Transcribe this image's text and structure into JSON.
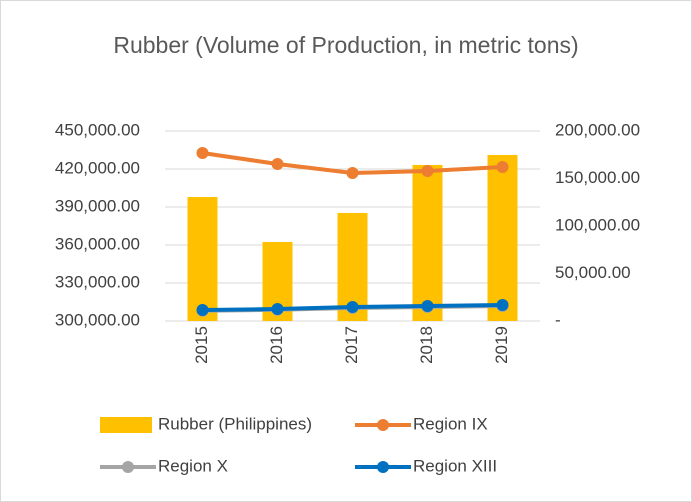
{
  "chart_data": {
    "type": "bar_line",
    "title": "Rubber (Volume of Production, in metric tons)",
    "categories": [
      "2015",
      "2016",
      "2017",
      "2018",
      "2019"
    ],
    "series": [
      {
        "name": "Rubber (Philippines)",
        "type": "bar",
        "color": "#ffc000",
        "values": [
          397900,
          362400,
          385300,
          423200,
          431100
        ]
      },
      {
        "name": "Region IX",
        "type": "line",
        "axis": "y2",
        "color": "#ed7d31",
        "values": [
          176800,
          165300,
          155800,
          157900,
          162100
        ]
      },
      {
        "name": "Region X",
        "type": "line",
        "axis": "y2",
        "color": "#a5a5a5",
        "values": [
          10800,
          11800,
          13700,
          14700,
          15800
        ]
      },
      {
        "name": "Region XIII",
        "type": "line",
        "axis": "y2",
        "color": "#0070c0",
        "values": [
          11600,
          12600,
          14700,
          15800,
          16800
        ]
      }
    ],
    "ylim": [
      300000,
      450000
    ],
    "yticks": [
      {
        "value": 300000,
        "label": "300,000.00"
      },
      {
        "value": 330000,
        "label": "330,000.00"
      },
      {
        "value": 360000,
        "label": "360,000.00"
      },
      {
        "value": 390000,
        "label": "390,000.00"
      },
      {
        "value": 420000,
        "label": "420,000.00"
      },
      {
        "value": 450000,
        "label": "450,000.00"
      }
    ],
    "y2lim": [
      0,
      200000
    ],
    "y2ticks": [
      {
        "value": 0,
        "label": "-"
      },
      {
        "value": 50000,
        "label": "50,000.00"
      },
      {
        "value": 100000,
        "label": "100,000.00"
      },
      {
        "value": 150000,
        "label": "150,000.00"
      },
      {
        "value": 200000,
        "label": "200,000.00"
      }
    ],
    "grid": true
  }
}
